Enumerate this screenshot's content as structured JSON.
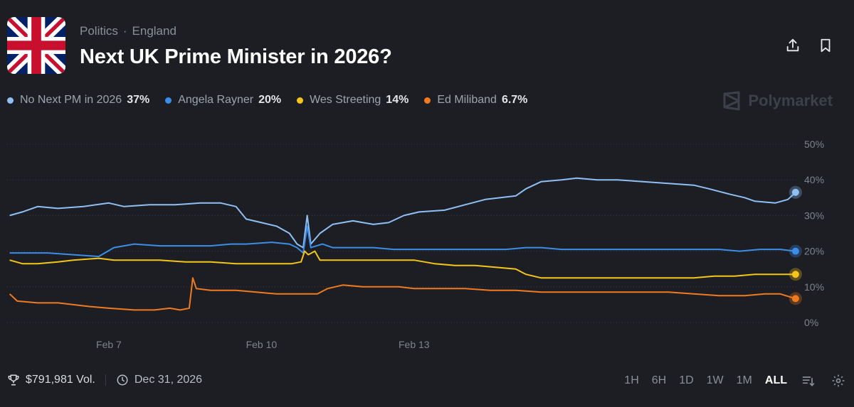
{
  "breadcrumbs": {
    "category": "Politics",
    "separator": "·",
    "subcategory": "England"
  },
  "market": {
    "title": "Next UK Prime Minister in 2026?"
  },
  "brand": {
    "name": "Polymarket"
  },
  "legend": [
    {
      "name": "No Next PM in 2026",
      "value": "37%",
      "color": "#8ec0f5"
    },
    {
      "name": "Angela Rayner",
      "value": "20%",
      "color": "#3b8ee8"
    },
    {
      "name": "Wes Streeting",
      "value": "14%",
      "color": "#f5c518"
    },
    {
      "name": "Ed Miliband",
      "value": "6.7%",
      "color": "#f07a1f"
    }
  ],
  "footer": {
    "volume": "$791,981 Vol.",
    "end_date": "Dec 31, 2026"
  },
  "time_ranges": [
    {
      "label": "1H",
      "active": false
    },
    {
      "label": "6H",
      "active": false
    },
    {
      "label": "1D",
      "active": false
    },
    {
      "label": "1W",
      "active": false
    },
    {
      "label": "1M",
      "active": false
    },
    {
      "label": "ALL",
      "active": true
    }
  ],
  "chart_data": {
    "type": "line",
    "x_ticks": [
      "Feb 7",
      "Feb 10",
      "Feb 13"
    ],
    "y_ticks": [
      "0%",
      "10%",
      "20%",
      "30%",
      "40%",
      "50%"
    ],
    "ylim": [
      0,
      50
    ],
    "grid": true,
    "series": [
      {
        "name": "No Next PM in 2026",
        "color": "#8ec0f5",
        "points": [
          [
            5.05,
            30
          ],
          [
            5.3,
            31
          ],
          [
            5.6,
            32.5
          ],
          [
            6.0,
            32
          ],
          [
            6.5,
            32.5
          ],
          [
            7.0,
            33.5
          ],
          [
            7.3,
            32.5
          ],
          [
            7.8,
            33
          ],
          [
            8.3,
            33
          ],
          [
            8.8,
            33.5
          ],
          [
            9.2,
            33.5
          ],
          [
            9.5,
            32.5
          ],
          [
            9.7,
            29
          ],
          [
            10.0,
            28
          ],
          [
            10.3,
            27
          ],
          [
            10.55,
            25
          ],
          [
            10.7,
            22
          ],
          [
            10.82,
            21
          ],
          [
            10.9,
            30
          ],
          [
            10.97,
            22
          ],
          [
            11.15,
            25
          ],
          [
            11.4,
            27.5
          ],
          [
            11.8,
            28.5
          ],
          [
            12.2,
            27.5
          ],
          [
            12.5,
            28
          ],
          [
            12.8,
            30
          ],
          [
            13.1,
            31
          ],
          [
            13.6,
            31.5
          ],
          [
            14.0,
            33
          ],
          [
            14.4,
            34.5
          ],
          [
            14.7,
            35
          ],
          [
            15.0,
            35.5
          ],
          [
            15.2,
            37.5
          ],
          [
            15.5,
            39.5
          ],
          [
            15.9,
            40
          ],
          [
            16.2,
            40.5
          ],
          [
            16.6,
            40
          ],
          [
            17.0,
            40
          ],
          [
            17.5,
            39.5
          ],
          [
            18.0,
            39
          ],
          [
            18.5,
            38.5
          ],
          [
            18.8,
            37.5
          ],
          [
            19.2,
            36
          ],
          [
            19.5,
            35
          ],
          [
            19.7,
            34
          ],
          [
            20.1,
            33.5
          ],
          [
            20.35,
            34.5
          ],
          [
            20.5,
            36.5
          ]
        ]
      },
      {
        "name": "Angela Rayner",
        "color": "#3b8ee8",
        "points": [
          [
            5.05,
            19.5
          ],
          [
            5.3,
            19.5
          ],
          [
            5.8,
            19.5
          ],
          [
            6.3,
            19
          ],
          [
            6.8,
            18.5
          ],
          [
            7.1,
            21
          ],
          [
            7.5,
            22
          ],
          [
            8.0,
            21.5
          ],
          [
            8.5,
            21.5
          ],
          [
            9.0,
            21.5
          ],
          [
            9.4,
            22
          ],
          [
            9.7,
            22
          ],
          [
            10.2,
            22.5
          ],
          [
            10.55,
            22
          ],
          [
            10.7,
            21
          ],
          [
            10.82,
            19.5
          ],
          [
            10.9,
            27
          ],
          [
            10.97,
            21
          ],
          [
            11.2,
            22
          ],
          [
            11.4,
            21
          ],
          [
            11.8,
            21
          ],
          [
            12.2,
            21
          ],
          [
            12.6,
            20.5
          ],
          [
            13.0,
            20.5
          ],
          [
            13.5,
            20.5
          ],
          [
            14.0,
            20.5
          ],
          [
            14.4,
            20.5
          ],
          [
            14.8,
            20.5
          ],
          [
            15.2,
            21
          ],
          [
            15.5,
            21
          ],
          [
            15.9,
            20.5
          ],
          [
            16.5,
            20.5
          ],
          [
            17.0,
            20.5
          ],
          [
            17.5,
            20.5
          ],
          [
            18.0,
            20.5
          ],
          [
            18.5,
            20.5
          ],
          [
            19.0,
            20.5
          ],
          [
            19.4,
            20
          ],
          [
            19.8,
            20.5
          ],
          [
            20.2,
            20.5
          ],
          [
            20.5,
            20
          ]
        ]
      },
      {
        "name": "Wes Streeting",
        "color": "#f5c518",
        "points": [
          [
            5.05,
            17.5
          ],
          [
            5.3,
            16.5
          ],
          [
            5.6,
            16.5
          ],
          [
            6.0,
            17
          ],
          [
            6.3,
            17.5
          ],
          [
            6.8,
            18
          ],
          [
            7.1,
            17.5
          ],
          [
            7.5,
            17.5
          ],
          [
            8.0,
            17.5
          ],
          [
            8.5,
            17
          ],
          [
            9.0,
            17
          ],
          [
            9.5,
            16.5
          ],
          [
            9.8,
            16.5
          ],
          [
            10.3,
            16.5
          ],
          [
            10.6,
            16.5
          ],
          [
            10.78,
            17
          ],
          [
            10.85,
            20
          ],
          [
            10.92,
            19
          ],
          [
            11.05,
            20
          ],
          [
            11.15,
            17.5
          ],
          [
            11.5,
            17.5
          ],
          [
            12.0,
            17.5
          ],
          [
            12.5,
            17.5
          ],
          [
            13.0,
            17.5
          ],
          [
            13.4,
            16.5
          ],
          [
            13.8,
            16
          ],
          [
            14.2,
            16
          ],
          [
            14.6,
            15.5
          ],
          [
            15.0,
            15
          ],
          [
            15.2,
            13.5
          ],
          [
            15.5,
            12.5
          ],
          [
            16.0,
            12.5
          ],
          [
            16.5,
            12.5
          ],
          [
            17.0,
            12.5
          ],
          [
            17.5,
            12.5
          ],
          [
            18.0,
            12.5
          ],
          [
            18.5,
            12.5
          ],
          [
            18.9,
            13
          ],
          [
            19.3,
            13
          ],
          [
            19.7,
            13.5
          ],
          [
            20.1,
            13.5
          ],
          [
            20.5,
            13.5
          ]
        ]
      },
      {
        "name": "Ed Miliband",
        "color": "#f07a1f",
        "points": [
          [
            5.05,
            8
          ],
          [
            5.2,
            6
          ],
          [
            5.6,
            5.5
          ],
          [
            6.0,
            5.5
          ],
          [
            6.3,
            5
          ],
          [
            6.6,
            4.5
          ],
          [
            7.0,
            4
          ],
          [
            7.5,
            3.5
          ],
          [
            7.9,
            3.5
          ],
          [
            8.2,
            4
          ],
          [
            8.4,
            3.5
          ],
          [
            8.58,
            4
          ],
          [
            8.65,
            12.5
          ],
          [
            8.72,
            9.5
          ],
          [
            9.0,
            9
          ],
          [
            9.5,
            9
          ],
          [
            9.9,
            8.5
          ],
          [
            10.3,
            8
          ],
          [
            10.8,
            8
          ],
          [
            11.1,
            8
          ],
          [
            11.3,
            9.5
          ],
          [
            11.6,
            10.5
          ],
          [
            12.0,
            10
          ],
          [
            12.3,
            10
          ],
          [
            12.7,
            10
          ],
          [
            13.0,
            9.5
          ],
          [
            13.5,
            9.5
          ],
          [
            14.0,
            9.5
          ],
          [
            14.5,
            9
          ],
          [
            15.0,
            9
          ],
          [
            15.5,
            8.5
          ],
          [
            16.0,
            8.5
          ],
          [
            16.5,
            8.5
          ],
          [
            17.0,
            8.5
          ],
          [
            17.5,
            8.5
          ],
          [
            18.0,
            8.5
          ],
          [
            18.5,
            8
          ],
          [
            19.0,
            7.5
          ],
          [
            19.5,
            7.5
          ],
          [
            19.9,
            8
          ],
          [
            20.2,
            8
          ],
          [
            20.5,
            6.7
          ]
        ]
      }
    ]
  }
}
